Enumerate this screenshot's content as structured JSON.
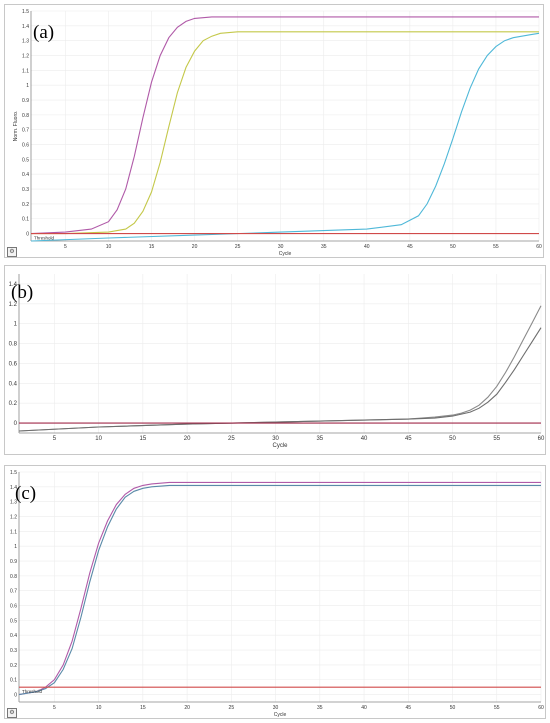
{
  "chart_data": [
    {
      "id": "a",
      "panel_label": "(a)",
      "type": "line",
      "xlabel": "Cycle",
      "ylabel": "Norm. Fluoro.",
      "threshold_label": "Threshold",
      "threshold": 0.0,
      "xlim": [
        1,
        60
      ],
      "ylim": [
        -0.05,
        1.5
      ],
      "x_ticks": [
        5,
        10,
        15,
        20,
        25,
        30,
        35,
        40,
        45,
        50,
        55,
        60
      ],
      "y_ticks": [
        0,
        0.1,
        0.2,
        0.3,
        0.4,
        0.5,
        0.6,
        0.7,
        0.8,
        0.9,
        1,
        1.1,
        1.2,
        1.3,
        1.4,
        1.5
      ],
      "grid": true,
      "series": [
        {
          "color": "#b05aa8",
          "x": [
            1,
            5,
            8,
            10,
            11,
            12,
            13,
            14,
            15,
            16,
            17,
            18,
            19,
            20,
            22,
            25,
            30,
            40,
            50,
            60
          ],
          "y": [
            0.0,
            0.01,
            0.03,
            0.08,
            0.16,
            0.3,
            0.52,
            0.78,
            1.02,
            1.2,
            1.32,
            1.39,
            1.43,
            1.45,
            1.46,
            1.46,
            1.46,
            1.46,
            1.46,
            1.46
          ]
        },
        {
          "color": "#c4c84a",
          "x": [
            1,
            5,
            10,
            12,
            13,
            14,
            15,
            16,
            17,
            18,
            19,
            20,
            21,
            22,
            23,
            25,
            30,
            40,
            50,
            60
          ],
          "y": [
            0.0,
            0.0,
            0.01,
            0.03,
            0.07,
            0.15,
            0.28,
            0.48,
            0.72,
            0.95,
            1.12,
            1.23,
            1.3,
            1.33,
            1.35,
            1.36,
            1.36,
            1.36,
            1.36,
            1.36
          ]
        },
        {
          "color": "#4fb8d8",
          "x": [
            1,
            10,
            20,
            30,
            40,
            44,
            46,
            47,
            48,
            49,
            50,
            51,
            52,
            53,
            54,
            55,
            56,
            57,
            58,
            59,
            60
          ],
          "y": [
            -0.05,
            -0.03,
            -0.01,
            0.01,
            0.03,
            0.06,
            0.12,
            0.2,
            0.32,
            0.47,
            0.64,
            0.82,
            0.98,
            1.11,
            1.2,
            1.26,
            1.3,
            1.32,
            1.33,
            1.34,
            1.35
          ]
        },
        {
          "color": "#d04a4a",
          "x": [
            1,
            60
          ],
          "y": [
            0.0,
            0.0
          ]
        }
      ]
    },
    {
      "id": "b",
      "panel_label": "(b)",
      "type": "line",
      "xlabel": "Cycle",
      "ylabel": "Norm. Fluoro.",
      "xlim": [
        1,
        60
      ],
      "ylim": [
        -0.1,
        1.5
      ],
      "x_ticks": [
        5,
        10,
        15,
        20,
        25,
        30,
        35,
        40,
        45,
        50,
        55,
        60
      ],
      "y_ticks": [
        0.0,
        0.2,
        0.4,
        0.6,
        0.8,
        1.0,
        1.2,
        1.4
      ],
      "grid": true,
      "series": [
        {
          "color": "#8a8a8a",
          "x": [
            1,
            10,
            20,
            30,
            40,
            45,
            48,
            50,
            51,
            52,
            53,
            54,
            55,
            56,
            57,
            58,
            59,
            60
          ],
          "y": [
            -0.08,
            -0.04,
            -0.01,
            0.01,
            0.03,
            0.04,
            0.06,
            0.08,
            0.1,
            0.13,
            0.18,
            0.26,
            0.37,
            0.51,
            0.67,
            0.84,
            1.01,
            1.18
          ]
        },
        {
          "color": "#6e6e6e",
          "x": [
            1,
            10,
            20,
            30,
            40,
            45,
            48,
            50,
            51,
            52,
            53,
            54,
            55,
            56,
            57,
            58,
            59,
            60
          ],
          "y": [
            -0.08,
            -0.04,
            -0.01,
            0.01,
            0.03,
            0.04,
            0.05,
            0.07,
            0.09,
            0.11,
            0.15,
            0.21,
            0.29,
            0.41,
            0.54,
            0.68,
            0.82,
            0.96
          ]
        },
        {
          "color": "#a02a4a",
          "x": [
            1,
            60
          ],
          "y": [
            0.0,
            0.0
          ]
        }
      ]
    },
    {
      "id": "c",
      "panel_label": "(c)",
      "type": "line",
      "xlabel": "Cycle",
      "ylabel": "Norm. Fluoro.",
      "threshold_label": "Threshold",
      "threshold": 0.05,
      "xlim": [
        1,
        60
      ],
      "ylim": [
        -0.05,
        1.5
      ],
      "x_ticks": [
        5,
        10,
        15,
        20,
        25,
        30,
        35,
        40,
        45,
        50,
        55,
        60
      ],
      "y_ticks": [
        0,
        0.1,
        0.2,
        0.3,
        0.4,
        0.5,
        0.6,
        0.7,
        0.8,
        0.9,
        1,
        1.1,
        1.2,
        1.3,
        1.4,
        1.5
      ],
      "grid": true,
      "series": [
        {
          "color": "#b05aa8",
          "x": [
            1,
            3,
            4,
            5,
            6,
            7,
            8,
            9,
            10,
            11,
            12,
            13,
            14,
            15,
            16,
            18,
            20,
            30,
            40,
            50,
            60
          ],
          "y": [
            0.0,
            0.02,
            0.05,
            0.1,
            0.2,
            0.36,
            0.58,
            0.82,
            1.02,
            1.17,
            1.28,
            1.35,
            1.39,
            1.41,
            1.42,
            1.43,
            1.43,
            1.43,
            1.43,
            1.43,
            1.43
          ]
        },
        {
          "color": "#5a8aa8",
          "x": [
            1,
            3,
            4,
            5,
            6,
            7,
            8,
            9,
            10,
            11,
            12,
            13,
            14,
            15,
            16,
            18,
            20,
            30,
            40,
            50,
            60
          ],
          "y": [
            0.0,
            0.02,
            0.04,
            0.08,
            0.17,
            0.31,
            0.52,
            0.76,
            0.97,
            1.13,
            1.25,
            1.33,
            1.37,
            1.39,
            1.4,
            1.41,
            1.41,
            1.41,
            1.41,
            1.41,
            1.41
          ]
        },
        {
          "color": "#d04a4a",
          "x": [
            1,
            60
          ],
          "y": [
            0.05,
            0.05
          ]
        }
      ]
    }
  ]
}
